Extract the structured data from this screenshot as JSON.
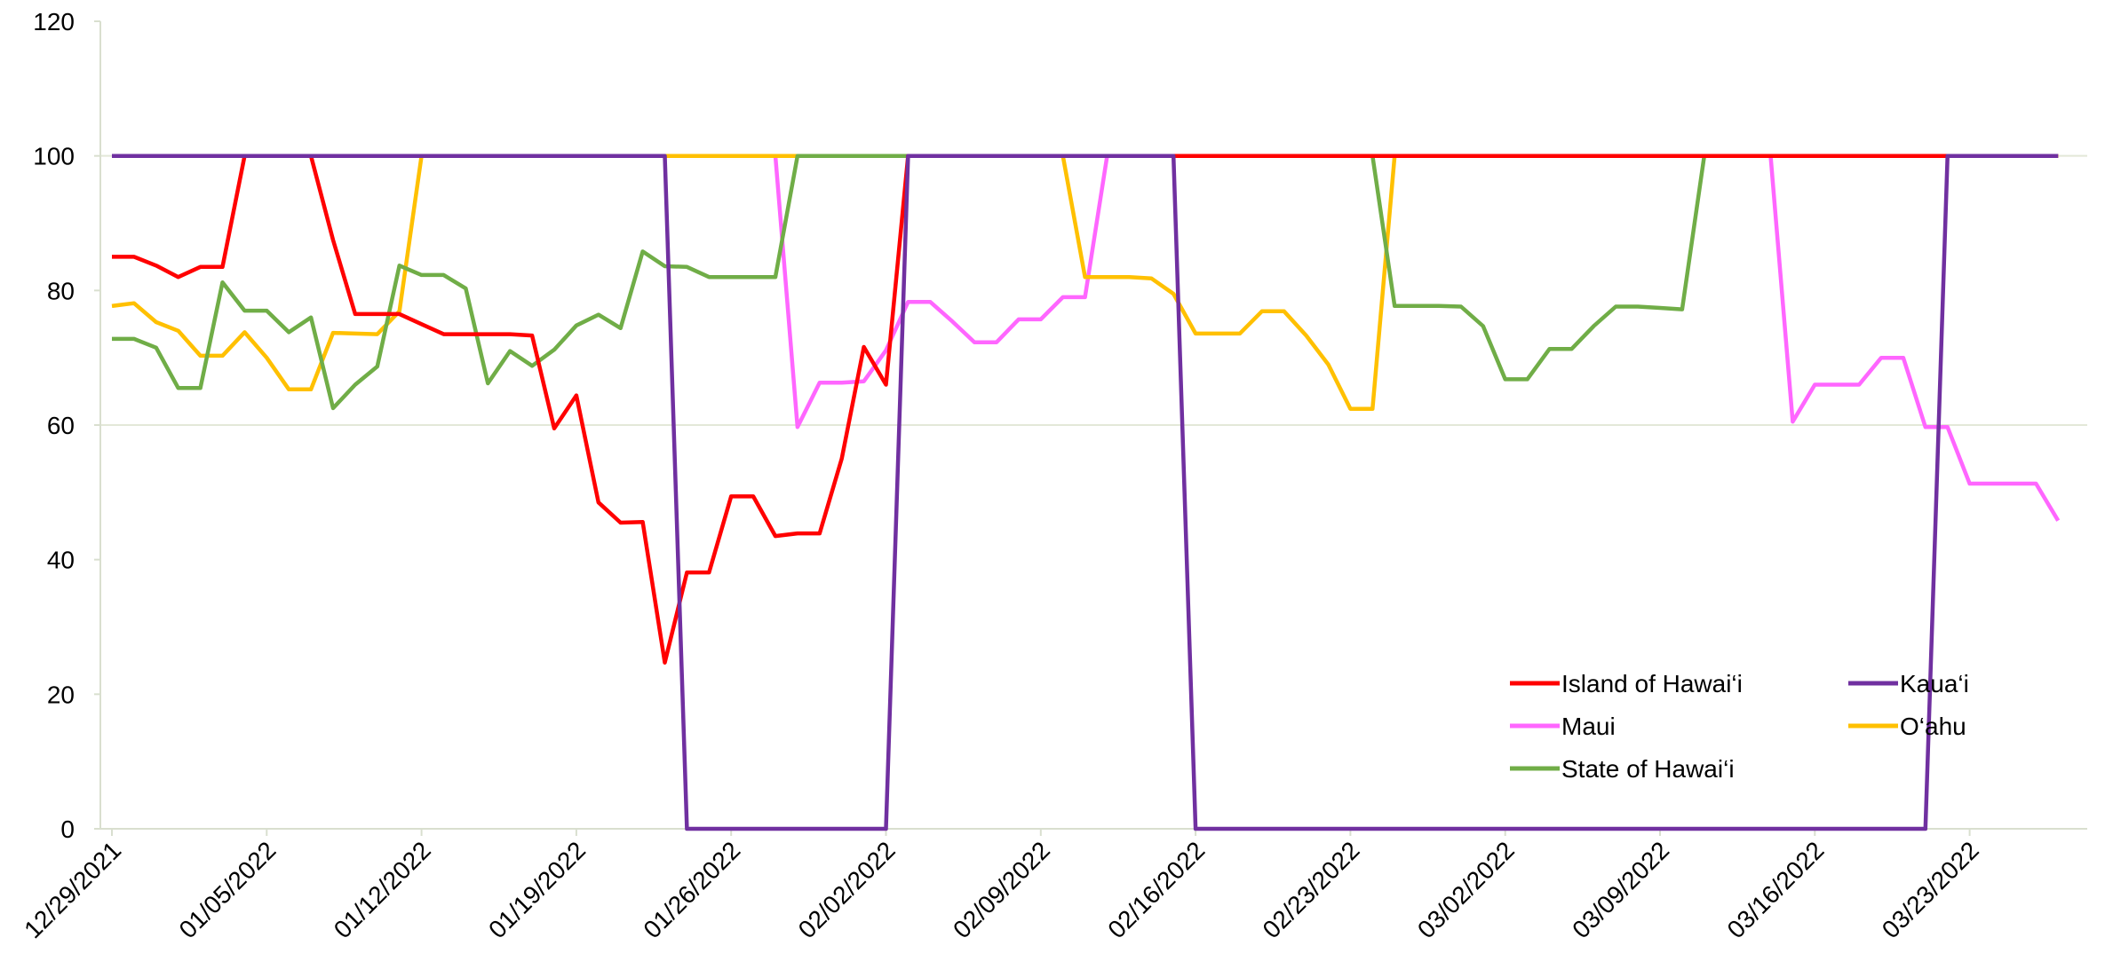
{
  "chart_data": {
    "type": "line",
    "title": "",
    "xlabel": "",
    "ylabel": "",
    "ylim": [
      0,
      120
    ],
    "yticks": [
      "0",
      "20",
      "40",
      "60",
      "80",
      "100",
      "120"
    ],
    "xticks": [
      "12/29/2021",
      "01/05/2022",
      "01/12/2022",
      "01/19/2022",
      "01/26/2022",
      "02/02/2022",
      "02/09/2022",
      "02/16/2022",
      "02/23/2022",
      "03/02/2022",
      "03/09/2022",
      "03/16/2022",
      "03/23/2022"
    ],
    "x": [
      "12/29/2021",
      "12/30/2021",
      "12/31/2021",
      "01/01/2022",
      "01/02/2022",
      "01/03/2022",
      "01/04/2022",
      "01/05/2022",
      "01/06/2022",
      "01/07/2022",
      "01/08/2022",
      "01/09/2022",
      "01/10/2022",
      "01/11/2022",
      "01/12/2022",
      "01/13/2022",
      "01/14/2022",
      "01/15/2022",
      "01/16/2022",
      "01/17/2022",
      "01/18/2022",
      "01/19/2022",
      "01/20/2022",
      "01/21/2022",
      "01/22/2022",
      "01/23/2022",
      "01/24/2022",
      "01/25/2022",
      "01/26/2022",
      "01/27/2022",
      "01/28/2022",
      "01/29/2022",
      "01/30/2022",
      "01/31/2022",
      "02/01/2022",
      "02/02/2022",
      "02/03/2022",
      "02/04/2022",
      "02/05/2022",
      "02/06/2022",
      "02/07/2022",
      "02/08/2022",
      "02/09/2022",
      "02/10/2022",
      "02/11/2022",
      "02/12/2022",
      "02/13/2022",
      "02/14/2022",
      "02/15/2022",
      "02/16/2022",
      "02/17/2022",
      "02/18/2022",
      "02/19/2022",
      "02/20/2022",
      "02/21/2022",
      "02/22/2022",
      "02/23/2022",
      "02/24/2022",
      "02/25/2022",
      "02/26/2022",
      "02/27/2022",
      "02/28/2022",
      "03/01/2022",
      "03/02/2022",
      "03/03/2022",
      "03/04/2022",
      "03/05/2022",
      "03/06/2022",
      "03/07/2022",
      "03/08/2022",
      "03/09/2022",
      "03/10/2022",
      "03/11/2022",
      "03/12/2022",
      "03/13/2022",
      "03/14/2022",
      "03/15/2022",
      "03/16/2022",
      "03/17/2022",
      "03/18/2022",
      "03/19/2022",
      "03/20/2022",
      "03/21/2022",
      "03/22/2022",
      "03/23/2022",
      "03/24/2022",
      "03/25/2022",
      "03/26/2022",
      "03/27/2022"
    ],
    "grid": "horizontal at 60 and 100",
    "legend_position": "bottom-right",
    "series": [
      {
        "name": "Island of Hawai‘i",
        "color": "#ff0000",
        "values": [
          85,
          85,
          83.7,
          82,
          83.5,
          83.5,
          100,
          100,
          100,
          100,
          87.5,
          76.5,
          76.5,
          76.5,
          75,
          73.5,
          73.5,
          73.5,
          73.5,
          73.3,
          59.5,
          64.4,
          48.5,
          45.5,
          45.6,
          24.7,
          38.1,
          38.1,
          49.4,
          49.4,
          43.5,
          43.9,
          43.9,
          55,
          71.6,
          66,
          100,
          100,
          100,
          100,
          100,
          100,
          100,
          100,
          100,
          100,
          100,
          100,
          100,
          100,
          100,
          100,
          100,
          100,
          100,
          100,
          100,
          100,
          100,
          100,
          100,
          100,
          100,
          100,
          100,
          100,
          100,
          100,
          100,
          100,
          100,
          100,
          100,
          100,
          100,
          100,
          100,
          100,
          100,
          100,
          100,
          100,
          100,
          100,
          100,
          100,
          100,
          100,
          100
        ]
      },
      {
        "name": "Kaua‘i",
        "color": "#7030a0",
        "values": [
          100,
          100,
          100,
          100,
          100,
          100,
          100,
          100,
          100,
          100,
          100,
          100,
          100,
          100,
          100,
          100,
          100,
          100,
          100,
          100,
          100,
          100,
          100,
          100,
          100,
          100,
          0,
          0,
          0,
          0,
          0,
          0,
          0,
          0,
          0,
          0,
          100,
          100,
          100,
          100,
          100,
          100,
          100,
          100,
          100,
          100,
          100,
          100,
          100,
          0,
          0,
          0,
          0,
          0,
          0,
          0,
          0,
          0,
          0,
          0,
          0,
          0,
          0,
          0,
          0,
          0,
          0,
          0,
          0,
          0,
          0,
          0,
          0,
          0,
          0,
          0,
          0,
          0,
          0,
          0,
          0,
          0,
          0,
          100,
          100,
          100,
          100,
          100,
          100
        ]
      },
      {
        "name": "Maui",
        "color": "#ff66ff",
        "values": [
          100,
          100,
          100,
          100,
          100,
          100,
          100,
          100,
          100,
          100,
          100,
          100,
          100,
          100,
          100,
          100,
          100,
          100,
          100,
          100,
          100,
          100,
          100,
          100,
          100,
          100,
          100,
          100,
          100,
          100,
          100,
          59.7,
          66.3,
          66.3,
          66.5,
          71.1,
          78.3,
          78.3,
          75.4,
          72.3,
          72.3,
          75.7,
          75.7,
          79,
          79,
          100,
          100,
          100,
          100,
          100,
          100,
          100,
          100,
          100,
          100,
          100,
          100,
          100,
          100,
          100,
          100,
          100,
          100,
          100,
          100,
          100,
          100,
          100,
          100,
          100,
          100,
          100,
          100,
          100,
          100,
          100,
          60.5,
          66,
          66,
          66,
          70,
          70,
          59.7,
          59.7,
          51.3,
          51.3,
          51.3,
          51.3,
          45.8
        ]
      },
      {
        "name": "O‘ahu",
        "color": "#ffc000",
        "values": [
          77.7,
          78.1,
          75.3,
          74,
          70.3,
          70.3,
          73.8,
          70,
          65.3,
          65.3,
          73.7,
          73.6,
          73.5,
          76.9,
          100,
          100,
          100,
          100,
          100,
          100,
          100,
          100,
          100,
          100,
          100,
          100,
          100,
          100,
          100,
          100,
          100,
          100,
          100,
          100,
          100,
          100,
          100,
          100,
          100,
          100,
          100,
          100,
          100,
          100,
          82,
          82,
          82,
          81.8,
          79.5,
          73.6,
          73.6,
          73.6,
          76.9,
          76.9,
          73.3,
          69,
          62.4,
          62.4,
          100,
          100,
          100,
          100,
          100,
          100,
          100,
          100,
          100,
          100,
          100,
          100,
          100,
          100,
          100,
          100,
          100,
          100,
          100,
          100,
          100,
          100,
          100,
          100,
          100,
          100,
          100,
          100,
          100,
          100,
          100
        ]
      },
      {
        "name": "State of Hawai‘i",
        "color": "#70ad47",
        "values": [
          72.8,
          72.8,
          71.5,
          65.5,
          65.5,
          81.2,
          77,
          77,
          73.8,
          76,
          62.5,
          66,
          68.7,
          83.7,
          82.3,
          82.3,
          80.3,
          66.2,
          71,
          68.8,
          71.2,
          74.8,
          76.4,
          74.4,
          85.8,
          83.6,
          83.5,
          82,
          82,
          82,
          82,
          100,
          100,
          100,
          100,
          100,
          100,
          100,
          100,
          100,
          100,
          100,
          100,
          100,
          100,
          100,
          100,
          100,
          100,
          100,
          100,
          100,
          100,
          100,
          100,
          100,
          100,
          100,
          77.7,
          77.7,
          77.7,
          77.6,
          74.7,
          66.8,
          66.8,
          71.3,
          71.3,
          74.7,
          77.6,
          77.6,
          77.4,
          77.2,
          100,
          100,
          100,
          100,
          100,
          100,
          100,
          100,
          100,
          100,
          100,
          100,
          100,
          100,
          100,
          100,
          100
        ]
      }
    ]
  }
}
